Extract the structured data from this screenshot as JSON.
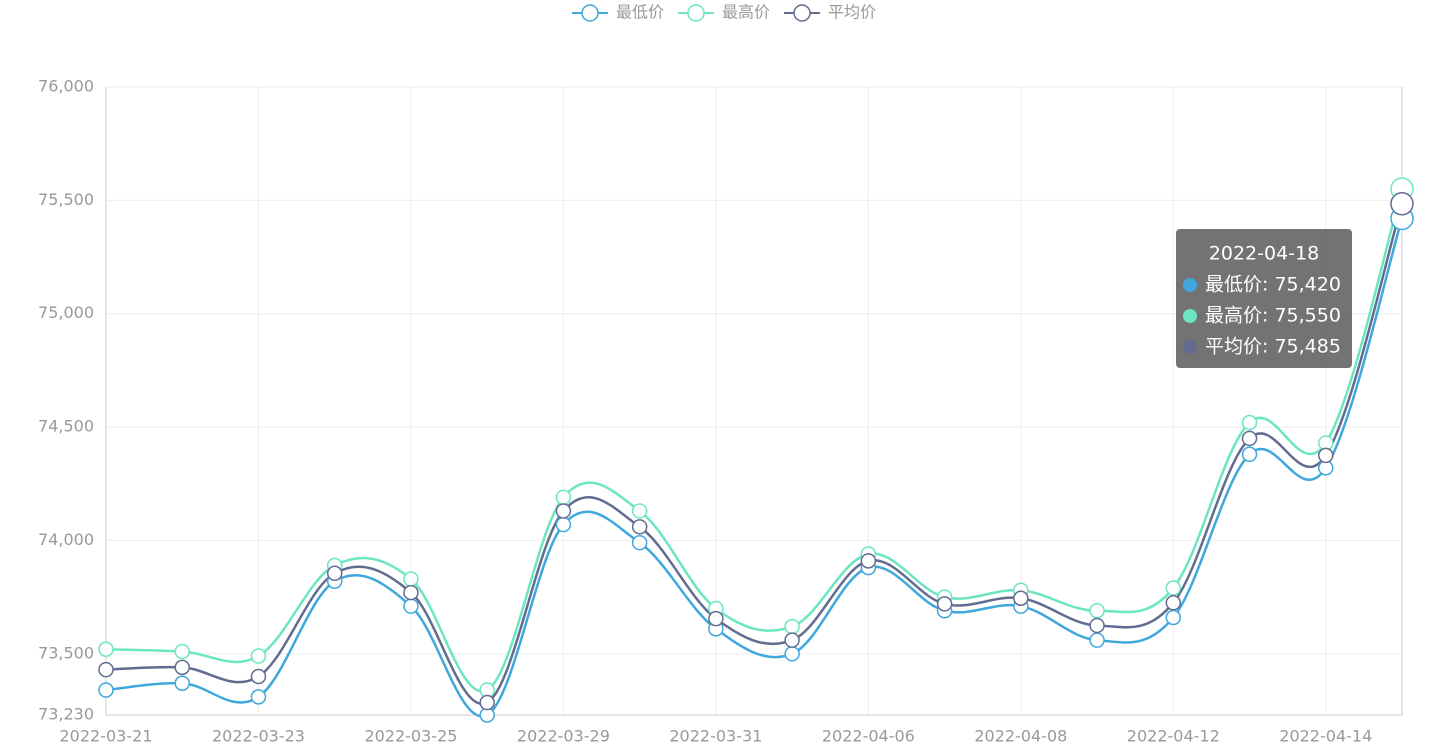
{
  "chart_data": {
    "type": "line",
    "categories": [
      "2022-03-21",
      null,
      "2022-03-23",
      null,
      "2022-03-25",
      null,
      "2022-03-29",
      null,
      "2022-03-31",
      null,
      "2022-04-06",
      null,
      "2022-04-08",
      null,
      "2022-04-12",
      null,
      "2022-04-14",
      "2022-04-18"
    ],
    "series": [
      {
        "name": "最低价",
        "color": "#3fa7dc",
        "values": [
          73340,
          73370,
          73310,
          73820,
          73710,
          73230,
          74070,
          73990,
          73610,
          73500,
          73880,
          73690,
          73710,
          73560,
          73660,
          74380,
          74320,
          75420
        ]
      },
      {
        "name": "最高价",
        "color": "#6be6c1",
        "values": [
          73520,
          73510,
          73490,
          73890,
          73830,
          73340,
          74190,
          74130,
          73700,
          73620,
          73940,
          73750,
          73780,
          73690,
          73790,
          74520,
          74430,
          75550
        ]
      },
      {
        "name": "平均价",
        "color": "#626c91",
        "values": [
          73430,
          73440,
          73400,
          73855,
          73770,
          73285,
          74130,
          74060,
          73655,
          73560,
          73910,
          73720,
          73745,
          73625,
          73725,
          74450,
          74375,
          75485
        ]
      }
    ],
    "ylim": [
      73230,
      76000
    ],
    "yticks": [
      {
        "value": 73230,
        "label": "73,230"
      },
      {
        "value": 73500,
        "label": "73,500"
      },
      {
        "value": 74000,
        "label": "74,000"
      },
      {
        "value": 74500,
        "label": "74,500"
      },
      {
        "value": 75000,
        "label": "75,000"
      },
      {
        "value": 75500,
        "label": "75,500"
      },
      {
        "value": 76000,
        "label": "76,000"
      }
    ],
    "grid": true,
    "smooth": true,
    "legend": "top",
    "tooltip": {
      "lines": [
        "最低价: 75,420",
        "最高价: 75,550",
        "平均价: 75,485"
      ]
    }
  }
}
